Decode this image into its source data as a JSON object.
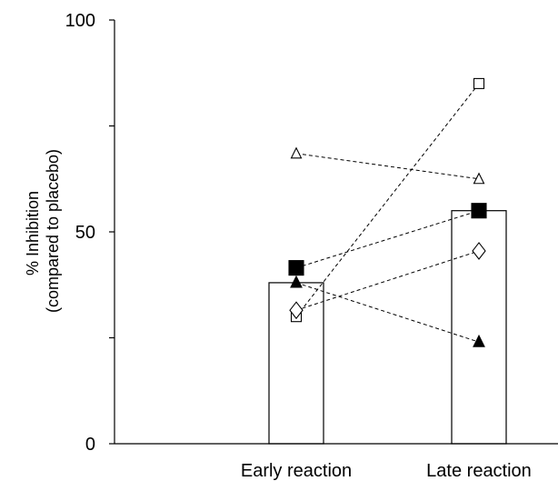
{
  "chart_data": {
    "type": "bar",
    "categories": [
      "Early reaction",
      "Late reaction"
    ],
    "bar_values": [
      38,
      55
    ],
    "ylabel_line1": "% Inhibition",
    "ylabel_line2": "(compared to placebo)",
    "ylim": [
      0,
      100
    ],
    "yticks": [
      0,
      50,
      100
    ],
    "ytick_labels": [
      "0",
      "50",
      "100"
    ],
    "minor_ticks": [
      25,
      75
    ],
    "grid": false,
    "series": [
      {
        "marker": "open-square",
        "values": [
          30,
          85
        ]
      },
      {
        "marker": "open-triangle",
        "values": [
          68.5,
          62.5
        ]
      },
      {
        "marker": "filled-square",
        "values": [
          41.5,
          55
        ]
      },
      {
        "marker": "open-diamond",
        "values": [
          31.5,
          45.5
        ]
      },
      {
        "marker": "filled-triangle",
        "values": [
          38,
          24
        ]
      }
    ]
  }
}
